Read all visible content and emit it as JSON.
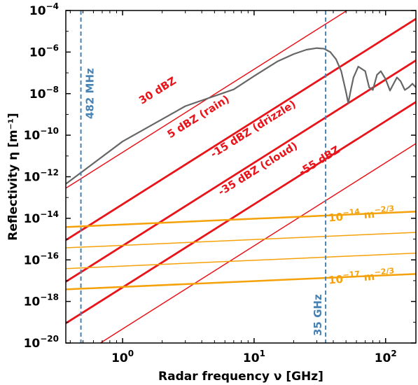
{
  "chart_data": {
    "type": "line",
    "xlabel": "Radar frequency ν [GHz]",
    "ylabel": "Reflectivity η [m⁻¹]",
    "x_scale": "log",
    "y_scale": "log",
    "xlim": [
      0.37,
      170
    ],
    "ylim": [
      1e-20,
      0.0001
    ],
    "x_ticks": [
      {
        "value": 1,
        "label": "10",
        "exp": "0"
      },
      {
        "value": 10,
        "label": "10",
        "exp": "1"
      },
      {
        "value": 100,
        "label": "10",
        "exp": "2"
      }
    ],
    "y_ticks": [
      {
        "value": 1e-20,
        "label": "10",
        "exp": "−20"
      },
      {
        "value": 1e-18,
        "label": "10",
        "exp": "−18"
      },
      {
        "value": 1e-16,
        "label": "10",
        "exp": "−16"
      },
      {
        "value": 1e-14,
        "label": "10",
        "exp": "−14"
      },
      {
        "value": 1e-12,
        "label": "10",
        "exp": "−12"
      },
      {
        "value": 1e-10,
        "label": "10",
        "exp": "−10"
      },
      {
        "value": 1e-08,
        "label": "10",
        "exp": "−8"
      },
      {
        "value": 1e-06,
        "label": "10",
        "exp": "−6"
      },
      {
        "value": 0.0001,
        "label": "10",
        "exp": "−4"
      }
    ],
    "grid": false,
    "vlines": [
      {
        "x": 0.482,
        "label": "482 MHz",
        "color": "#4682b4"
      },
      {
        "x": 35,
        "label": "35 GHz",
        "color": "#4682b4"
      }
    ],
    "series": [
      {
        "name": "30 dBZ",
        "color": "#e8141a",
        "width": 1.5,
        "x": [
          0.37,
          170
        ],
        "y": [
          2.8e-13,
          0.0124
        ]
      },
      {
        "name": "5 dBZ (rain)",
        "color": "#e8141a",
        "width": 2.8,
        "x": [
          0.37,
          170
        ],
        "y": [
          8.9e-16,
          3.95e-05
        ]
      },
      {
        "name": "-15 dBZ (drizzle)",
        "color": "#e8141a",
        "width": 2.8,
        "x": [
          0.37,
          170
        ],
        "y": [
          8.9e-18,
          3.95e-07
        ]
      },
      {
        "name": "-35 dBZ (cloud)",
        "color": "#e8141a",
        "width": 2.8,
        "x": [
          0.37,
          170
        ],
        "y": [
          8.9e-20,
          3.95e-09
        ]
      },
      {
        "name": "-55 dBZ",
        "color": "#e8141a",
        "width": 1.5,
        "x": [
          0.37,
          170
        ],
        "y": [
          8.9e-22,
          3.95e-11
        ]
      },
      {
        "name": "",
        "color": "#f5a10a",
        "width": 2.5,
        "x": [
          0.37,
          170
        ],
        "y": [
          3.8e-15,
          2.1e-14
        ]
      },
      {
        "name": "",
        "color": "#f5a10a",
        "width": 1.5,
        "x": [
          0.37,
          170
        ],
        "y": [
          3.8e-16,
          2.1e-15
        ]
      },
      {
        "name": "",
        "color": "#f5a10a",
        "width": 1.5,
        "x": [
          0.37,
          170
        ],
        "y": [
          3.8e-17,
          2.1e-16
        ]
      },
      {
        "name": "",
        "color": "#f5a10a",
        "width": 2.5,
        "x": [
          0.37,
          170
        ],
        "y": [
          3.8e-18,
          2.1e-17
        ]
      },
      {
        "name": "",
        "color": "#666666",
        "width": 2.2,
        "x": [
          0.37,
          1,
          3,
          7,
          10,
          15,
          20,
          25,
          30,
          34,
          38,
          42,
          46,
          50,
          52,
          54,
          57,
          62,
          70,
          75,
          80,
          86,
          92,
          100,
          108,
          115,
          122,
          130,
          140,
          150,
          160,
          170
        ],
        "y": [
          4.5e-13,
          5e-11,
          2.5e-09,
          1.6e-08,
          7e-08,
          3.5e-07,
          8e-07,
          1.3e-06,
          1.55e-06,
          1.45e-06,
          1e-06,
          4.5e-07,
          1.2e-07,
          1.2e-08,
          3.5e-09,
          1.2e-08,
          6e-08,
          2e-07,
          1.2e-07,
          2e-08,
          1.5e-08,
          8e-08,
          1.2e-07,
          5e-08,
          1.4e-08,
          3e-08,
          6e-08,
          4e-08,
          1.5e-08,
          2e-08,
          3e-08,
          2e-08
        ]
      }
    ],
    "annotations": [
      {
        "text": "30 dBZ",
        "x": 1.4,
        "y": 3e-09,
        "color": "#e8141a",
        "rotate": -32
      },
      {
        "text": "5 dBZ (rain)",
        "x": 2.3,
        "y": 7e-11,
        "color": "#e8141a",
        "rotate": -32
      },
      {
        "text": "-15 dBZ (drizzle)",
        "x": 4.9,
        "y": 8e-12,
        "color": "#e8141a",
        "rotate": -32
      },
      {
        "text": "-35 dBZ (cloud)",
        "x": 5.6,
        "y": 1.2e-13,
        "color": "#e8141a",
        "rotate": -32
      },
      {
        "text": "-55 dBZ",
        "x": 23,
        "y": 1.1e-12,
        "color": "#e8141a",
        "rotate": -32
      },
      {
        "text": "10",
        "exp": "−14",
        "unit": " m",
        "unitexp": "−2/3",
        "x": 37,
        "y": 7e-15,
        "color": "#f5a10a",
        "rotate": -5
      },
      {
        "text": "10",
        "exp": "−17",
        "unit": " m",
        "unitexp": "−2/3",
        "x": 37,
        "y": 7e-18,
        "color": "#f5a10a",
        "rotate": -5
      }
    ]
  }
}
